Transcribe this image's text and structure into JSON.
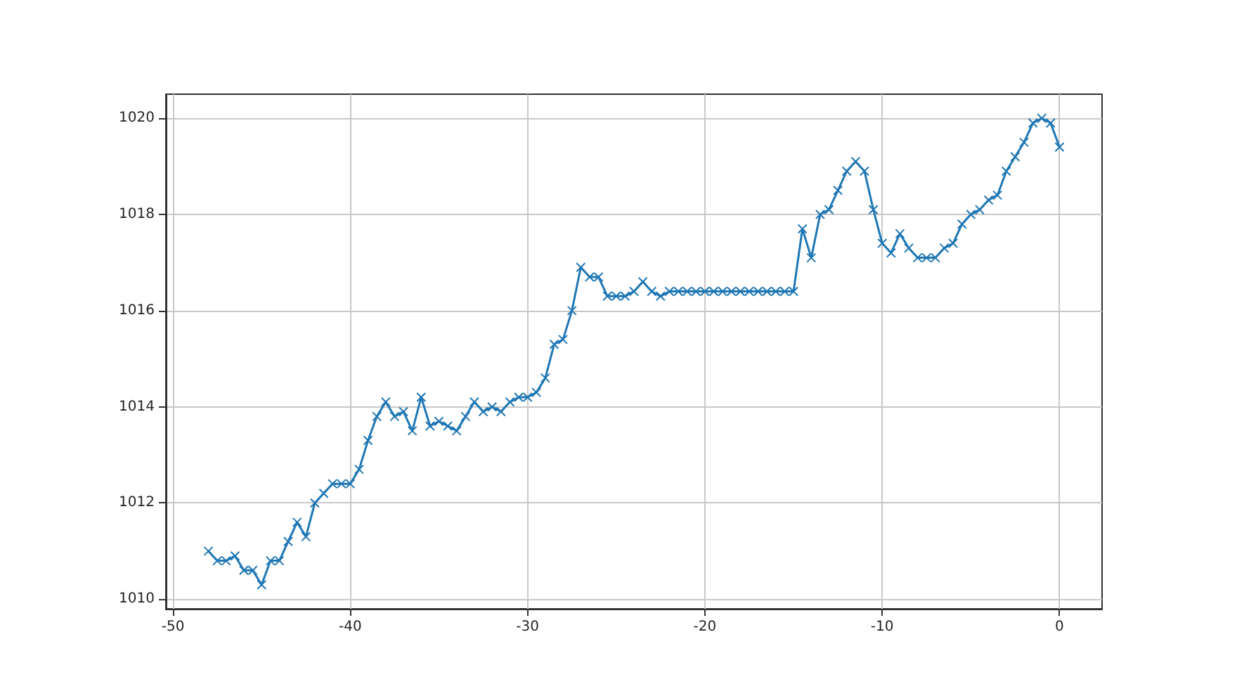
{
  "chart_data": {
    "type": "line",
    "x": [
      -48,
      -47.5,
      -47,
      -46.5,
      -46,
      -45.5,
      -45,
      -44.5,
      -44,
      -43.5,
      -43,
      -42.5,
      -42,
      -41.5,
      -41,
      -40.5,
      -40,
      -39.5,
      -39,
      -38.5,
      -38,
      -37.5,
      -37,
      -36.5,
      -36,
      -35.5,
      -35,
      -34.5,
      -34,
      -33.5,
      -33,
      -32.5,
      -32,
      -31.5,
      -31,
      -30.5,
      -30,
      -29.5,
      -29,
      -28.5,
      -28,
      -27.5,
      -27,
      -26.5,
      -26,
      -25.5,
      -25,
      -24.5,
      -24,
      -23.5,
      -23,
      -22.5,
      -22,
      -21.5,
      -21,
      -20.5,
      -20,
      -19.5,
      -19,
      -18.5,
      -18,
      -17.5,
      -17,
      -16.5,
      -16,
      -15.5,
      -15,
      -14.5,
      -14,
      -13.5,
      -13,
      -12.5,
      -12,
      -11.5,
      -11,
      -10.5,
      -10,
      -9.5,
      -9,
      -8.5,
      -8,
      -7.5,
      -7,
      -6.5,
      -6,
      -5.5,
      -5,
      -4.5,
      -4,
      -3.5,
      -3,
      -2.5,
      -2,
      -1.5,
      -1,
      -0.5,
      0
    ],
    "series": [
      {
        "color": "#1f77b4",
        "values": [
          1011.0,
          1010.8,
          1010.8,
          1010.9,
          1010.6,
          1010.6,
          1010.3,
          1010.8,
          1010.8,
          1011.2,
          1011.6,
          1011.3,
          1012.0,
          1012.2,
          1012.4,
          1012.4,
          1012.4,
          1012.7,
          1013.3,
          1013.8,
          1014.1,
          1013.8,
          1013.9,
          1013.5,
          1014.2,
          1013.6,
          1013.7,
          1013.6,
          1013.5,
          1013.8,
          1014.1,
          1013.9,
          1014.0,
          1013.9,
          1014.1,
          1014.2,
          1014.2,
          1014.3,
          1014.6,
          1015.3,
          1015.4,
          1016.0,
          1016.9,
          1016.7,
          1016.7,
          1016.3,
          1016.3,
          1016.3,
          1016.4,
          1016.6,
          1016.4,
          1016.3,
          1016.4,
          1016.4,
          1016.4,
          1016.4,
          1016.4,
          1016.4,
          1016.4,
          1016.4,
          1016.4,
          1016.4,
          1016.4,
          1016.4,
          1016.4,
          1016.4,
          1016.4,
          1017.7,
          1017.1,
          1018.0,
          1018.1,
          1018.5,
          1018.9,
          1019.1,
          1018.9,
          1018.1,
          1017.4,
          1017.2,
          1017.6,
          1017.3,
          1017.1,
          1017.1,
          1017.1,
          1017.3,
          1017.4,
          1017.8,
          1018.0,
          1018.1,
          1018.3,
          1018.4,
          1018.9,
          1019.2,
          1019.5,
          1019.9,
          1020.0,
          1019.9,
          1019.4
        ]
      }
    ],
    "xlim": [
      -50.4,
      2.4
    ],
    "xticks": [
      -50,
      -40,
      -30,
      -20,
      -10,
      0
    ],
    "ylim": [
      1009.8,
      1020.5
    ],
    "yticks": [
      1010,
      1012,
      1014,
      1016,
      1018,
      1020
    ],
    "grid": true,
    "marker": "cross",
    "line_style": "solid"
  }
}
